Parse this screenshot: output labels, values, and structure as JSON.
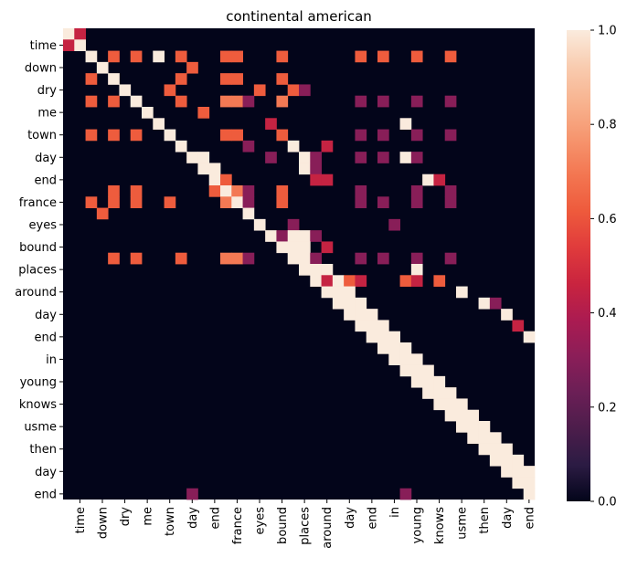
{
  "chart_data": {
    "type": "heatmap",
    "title": "continental american",
    "xlabel": "",
    "ylabel": "",
    "labels": [
      "time",
      "down",
      "dry",
      "me",
      "town",
      "day",
      "end",
      "france",
      "eyes",
      "bound",
      "places",
      "around",
      "day",
      "end",
      "in",
      "young",
      "knows",
      "usme",
      "then",
      "day",
      "end"
    ],
    "n_cells": 42,
    "colorbar": {
      "min": 0.0,
      "max": 1.0,
      "ticks": [
        "0.0",
        "0.2",
        "0.4",
        "0.6",
        "0.8",
        "1.0"
      ],
      "colormap": "rocket",
      "stops": [
        "#03051a",
        "#2b1b43",
        "#4c1d4b",
        "#6b1f56",
        "#8b1e58",
        "#ab1b51",
        "#c9243f",
        "#e03b3c",
        "#ee5a3c",
        "#f37651",
        "#f6956e",
        "#f8b38f",
        "#f9ccb0",
        "#faebdd"
      ]
    },
    "cells": [
      [
        0,
        0,
        1.0
      ],
      [
        0,
        1,
        0.45
      ],
      [
        1,
        0,
        0.45
      ],
      [
        1,
        1,
        1.0
      ],
      [
        2,
        2,
        1.0
      ],
      [
        2,
        4,
        0.62
      ],
      [
        2,
        6,
        0.62
      ],
      [
        2,
        8,
        1.0
      ],
      [
        2,
        10,
        0.62
      ],
      [
        2,
        14,
        0.62
      ],
      [
        2,
        15,
        0.62
      ],
      [
        2,
        19,
        0.62
      ],
      [
        2,
        26,
        0.62
      ],
      [
        2,
        28,
        0.62
      ],
      [
        2,
        31,
        0.62
      ],
      [
        2,
        34,
        0.62
      ],
      [
        3,
        3,
        1.0
      ],
      [
        3,
        11,
        0.62
      ],
      [
        4,
        2,
        0.62
      ],
      [
        4,
        4,
        1.0
      ],
      [
        4,
        10,
        0.62
      ],
      [
        4,
        14,
        0.62
      ],
      [
        4,
        15,
        0.62
      ],
      [
        4,
        19,
        0.62
      ],
      [
        5,
        5,
        1.0
      ],
      [
        5,
        9,
        0.62
      ],
      [
        5,
        17,
        0.62
      ],
      [
        5,
        20,
        0.62
      ],
      [
        5,
        21,
        0.3
      ],
      [
        6,
        2,
        0.62
      ],
      [
        6,
        4,
        0.62
      ],
      [
        6,
        6,
        1.0
      ],
      [
        6,
        10,
        0.62
      ],
      [
        6,
        14,
        0.7
      ],
      [
        6,
        15,
        0.7
      ],
      [
        6,
        16,
        0.3
      ],
      [
        6,
        19,
        0.7
      ],
      [
        6,
        26,
        0.3
      ],
      [
        6,
        28,
        0.3
      ],
      [
        6,
        31,
        0.3
      ],
      [
        6,
        34,
        0.3
      ],
      [
        7,
        7,
        1.0
      ],
      [
        7,
        12,
        0.62
      ],
      [
        8,
        8,
        1.0
      ],
      [
        8,
        18,
        0.45
      ],
      [
        8,
        30,
        1.0
      ],
      [
        9,
        2,
        0.62
      ],
      [
        9,
        4,
        0.62
      ],
      [
        9,
        6,
        0.62
      ],
      [
        9,
        9,
        1.0
      ],
      [
        9,
        14,
        0.62
      ],
      [
        9,
        15,
        0.62
      ],
      [
        9,
        19,
        0.62
      ],
      [
        9,
        26,
        0.3
      ],
      [
        9,
        28,
        0.3
      ],
      [
        9,
        31,
        0.3
      ],
      [
        9,
        34,
        0.3
      ],
      [
        10,
        10,
        1.0
      ],
      [
        10,
        16,
        0.3
      ],
      [
        10,
        20,
        1.0
      ],
      [
        10,
        23,
        0.45
      ],
      [
        11,
        11,
        1.0
      ],
      [
        11,
        12,
        1.0
      ],
      [
        11,
        18,
        0.3
      ],
      [
        11,
        21,
        1.0
      ],
      [
        11,
        22,
        0.3
      ],
      [
        11,
        26,
        0.3
      ],
      [
        11,
        28,
        0.3
      ],
      [
        11,
        30,
        1.0
      ],
      [
        11,
        31,
        0.3
      ],
      [
        12,
        12,
        1.0
      ],
      [
        12,
        13,
        1.0
      ],
      [
        12,
        21,
        1.0
      ],
      [
        12,
        22,
        0.3
      ],
      [
        13,
        13,
        1.0
      ],
      [
        13,
        14,
        0.62
      ],
      [
        13,
        22,
        0.45
      ],
      [
        13,
        23,
        0.45
      ],
      [
        13,
        32,
        1.0
      ],
      [
        13,
        33,
        0.45
      ],
      [
        14,
        4,
        0.62
      ],
      [
        14,
        6,
        0.62
      ],
      [
        14,
        13,
        0.62
      ],
      [
        14,
        14,
        1.0
      ],
      [
        14,
        15,
        0.7
      ],
      [
        14,
        16,
        0.3
      ],
      [
        14,
        19,
        0.62
      ],
      [
        14,
        26,
        0.3
      ],
      [
        14,
        31,
        0.3
      ],
      [
        14,
        34,
        0.3
      ],
      [
        15,
        2,
        0.62
      ],
      [
        15,
        4,
        0.62
      ],
      [
        15,
        6,
        0.62
      ],
      [
        15,
        9,
        0.62
      ],
      [
        15,
        14,
        0.7
      ],
      [
        15,
        15,
        1.0
      ],
      [
        15,
        16,
        0.3
      ],
      [
        15,
        19,
        0.62
      ],
      [
        15,
        26,
        0.3
      ],
      [
        15,
        28,
        0.3
      ],
      [
        15,
        31,
        0.3
      ],
      [
        15,
        34,
        0.3
      ],
      [
        16,
        3,
        0.62
      ],
      [
        16,
        16,
        1.0
      ],
      [
        17,
        17,
        1.0
      ],
      [
        17,
        20,
        0.3
      ],
      [
        17,
        29,
        0.3
      ],
      [
        18,
        18,
        1.0
      ],
      [
        18,
        19,
        0.3
      ],
      [
        18,
        20,
        1.0
      ],
      [
        18,
        21,
        1.0
      ],
      [
        18,
        22,
        0.3
      ],
      [
        19,
        19,
        1.0
      ],
      [
        19,
        20,
        1.0
      ],
      [
        19,
        21,
        1.0
      ],
      [
        19,
        23,
        0.45
      ],
      [
        20,
        4,
        0.62
      ],
      [
        20,
        6,
        0.62
      ],
      [
        20,
        10,
        0.62
      ],
      [
        20,
        14,
        0.7
      ],
      [
        20,
        15,
        0.7
      ],
      [
        20,
        16,
        0.3
      ],
      [
        20,
        20,
        1.0
      ],
      [
        20,
        21,
        1.0
      ],
      [
        20,
        22,
        0.3
      ],
      [
        20,
        26,
        0.3
      ],
      [
        20,
        28,
        0.3
      ],
      [
        20,
        31,
        0.3
      ],
      [
        20,
        34,
        0.3
      ],
      [
        21,
        21,
        1.0
      ],
      [
        21,
        22,
        1.0
      ],
      [
        21,
        23,
        1.0
      ],
      [
        21,
        31,
        1.0
      ],
      [
        22,
        22,
        1.0
      ],
      [
        22,
        23,
        0.45
      ],
      [
        22,
        24,
        1.0
      ],
      [
        22,
        25,
        0.62
      ],
      [
        22,
        26,
        0.45
      ],
      [
        22,
        30,
        0.62
      ],
      [
        22,
        31,
        0.45
      ],
      [
        22,
        33,
        0.62
      ],
      [
        23,
        23,
        1.0
      ],
      [
        23,
        24,
        1.0
      ],
      [
        23,
        25,
        1.0
      ],
      [
        23,
        35,
        1.0
      ],
      [
        24,
        24,
        1.0
      ],
      [
        24,
        25,
        1.0
      ],
      [
        24,
        26,
        1.0
      ],
      [
        24,
        37,
        1.0
      ],
      [
        24,
        38,
        0.3
      ],
      [
        25,
        25,
        1.0
      ],
      [
        25,
        26,
        1.0
      ],
      [
        25,
        27,
        1.0
      ],
      [
        25,
        39,
        1.0
      ],
      [
        26,
        26,
        1.0
      ],
      [
        26,
        27,
        1.0
      ],
      [
        26,
        28,
        1.0
      ],
      [
        26,
        40,
        0.45
      ],
      [
        27,
        27,
        1.0
      ],
      [
        27,
        28,
        1.0
      ],
      [
        27,
        29,
        1.0
      ],
      [
        27,
        41,
        1.0
      ],
      [
        28,
        28,
        1.0
      ],
      [
        28,
        29,
        1.0
      ],
      [
        28,
        30,
        1.0
      ],
      [
        29,
        29,
        1.0
      ],
      [
        29,
        30,
        1.0
      ],
      [
        29,
        31,
        1.0
      ],
      [
        30,
        30,
        1.0
      ],
      [
        30,
        31,
        1.0
      ],
      [
        30,
        32,
        1.0
      ],
      [
        31,
        31,
        1.0
      ],
      [
        31,
        32,
        1.0
      ],
      [
        31,
        33,
        1.0
      ],
      [
        32,
        32,
        1.0
      ],
      [
        32,
        33,
        1.0
      ],
      [
        32,
        34,
        1.0
      ],
      [
        33,
        33,
        1.0
      ],
      [
        33,
        34,
        1.0
      ],
      [
        33,
        35,
        1.0
      ],
      [
        34,
        34,
        1.0
      ],
      [
        34,
        35,
        1.0
      ],
      [
        34,
        36,
        1.0
      ],
      [
        35,
        35,
        1.0
      ],
      [
        35,
        36,
        1.0
      ],
      [
        35,
        37,
        1.0
      ],
      [
        36,
        36,
        1.0
      ],
      [
        36,
        37,
        1.0
      ],
      [
        36,
        38,
        1.0
      ],
      [
        37,
        37,
        1.0
      ],
      [
        37,
        38,
        1.0
      ],
      [
        37,
        39,
        1.0
      ],
      [
        38,
        38,
        1.0
      ],
      [
        38,
        39,
        1.0
      ],
      [
        38,
        40,
        1.0
      ],
      [
        39,
        39,
        1.0
      ],
      [
        39,
        40,
        1.0
      ],
      [
        39,
        41,
        1.0
      ],
      [
        40,
        40,
        1.0
      ],
      [
        40,
        41,
        1.0
      ],
      [
        41,
        41,
        1.0
      ],
      [
        41,
        11,
        0.3
      ],
      [
        41,
        30,
        0.3
      ]
    ]
  }
}
